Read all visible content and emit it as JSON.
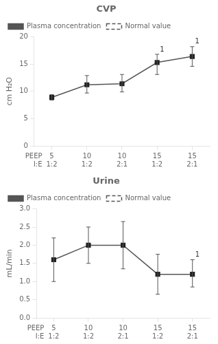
{
  "chart_data": [
    {
      "type": "line",
      "title": "CVP",
      "ylabel": "cm H₂O",
      "categories": [
        [
          "5",
          "1:2"
        ],
        [
          "10",
          "1:2"
        ],
        [
          "10",
          "2:1"
        ],
        [
          "15",
          "1:2"
        ],
        [
          "15",
          "2:1"
        ]
      ],
      "category_rows": [
        "PEEP",
        "I:E"
      ],
      "series": [
        {
          "name": "Plasma concentration",
          "color": "#555555",
          "marker": "square",
          "line_style": "solid",
          "values": [
            8.9,
            11.2,
            11.4,
            15.3,
            16.4
          ],
          "yerr_lower": [
            0.5,
            1.5,
            1.5,
            2.2,
            1.8
          ],
          "yerr_upper": [
            0.5,
            1.7,
            1.7,
            1.5,
            1.8
          ],
          "point_labels": [
            null,
            null,
            null,
            "1",
            "1"
          ]
        },
        {
          "name": "Normal value",
          "color": "#555555",
          "line_style": "dashed",
          "values": [
            null,
            null,
            null,
            null,
            null
          ]
        }
      ],
      "ylim": [
        0,
        20
      ],
      "yticks": [
        0,
        5,
        10,
        15,
        20
      ],
      "grid": false,
      "legend": "upper left"
    },
    {
      "type": "line",
      "title": "Urine",
      "ylabel": "mL/min",
      "categories": [
        [
          "5",
          "1:2"
        ],
        [
          "10",
          "1:2"
        ],
        [
          "10",
          "2:1"
        ],
        [
          "15",
          "1:2"
        ],
        [
          "15",
          "2:1"
        ]
      ],
      "category_rows": [
        "PEEP",
        "I:E"
      ],
      "series": [
        {
          "name": "Plasma concentration",
          "color": "#555555",
          "marker": "square",
          "line_style": "solid",
          "values": [
            1.6,
            2.0,
            2.0,
            1.2,
            1.2
          ],
          "yerr_lower": [
            0.6,
            0.5,
            0.65,
            0.55,
            0.35
          ],
          "yerr_upper": [
            0.6,
            0.5,
            0.65,
            0.55,
            0.4
          ],
          "point_labels": [
            null,
            null,
            null,
            null,
            "1"
          ]
        },
        {
          "name": "Normal value",
          "color": "#555555",
          "line_style": "dashed",
          "values": [
            null,
            null,
            null,
            null,
            null
          ]
        }
      ],
      "ylim": [
        0,
        3.0
      ],
      "yticks": [
        {
          "value": 0,
          "label": "0.0"
        },
        {
          "value": 0.5,
          "label": "0.5"
        },
        {
          "value": 1.0,
          "label": "1.0"
        },
        {
          "value": 1.5,
          "label": "1.5"
        },
        {
          "value": 2.0,
          "label": "2.0"
        },
        {
          "value": 2.5,
          "label": "2.5"
        },
        {
          "value": 3.0,
          "label": "3.0"
        }
      ],
      "grid": false,
      "legend": "upper left"
    }
  ]
}
